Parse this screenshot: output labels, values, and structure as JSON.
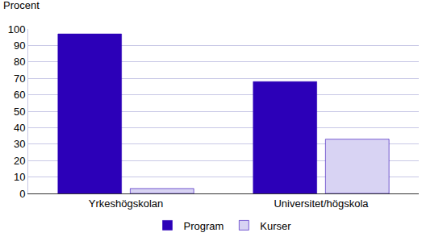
{
  "chart_data": {
    "type": "bar",
    "ylabel": "Procent",
    "categories": [
      "Yrkeshögskolan",
      "Universitet/högskola"
    ],
    "series": [
      {
        "name": "Program",
        "color": "#2c00b8",
        "values": [
          97,
          68
        ]
      },
      {
        "name": "Kurser",
        "color": "#d8d3f3",
        "values": [
          3,
          33
        ]
      }
    ],
    "ylim": [
      0,
      100
    ],
    "yticks": [
      0,
      10,
      20,
      30,
      40,
      50,
      60,
      70,
      80,
      90,
      100
    ],
    "grid": true,
    "legend": "bottom"
  }
}
